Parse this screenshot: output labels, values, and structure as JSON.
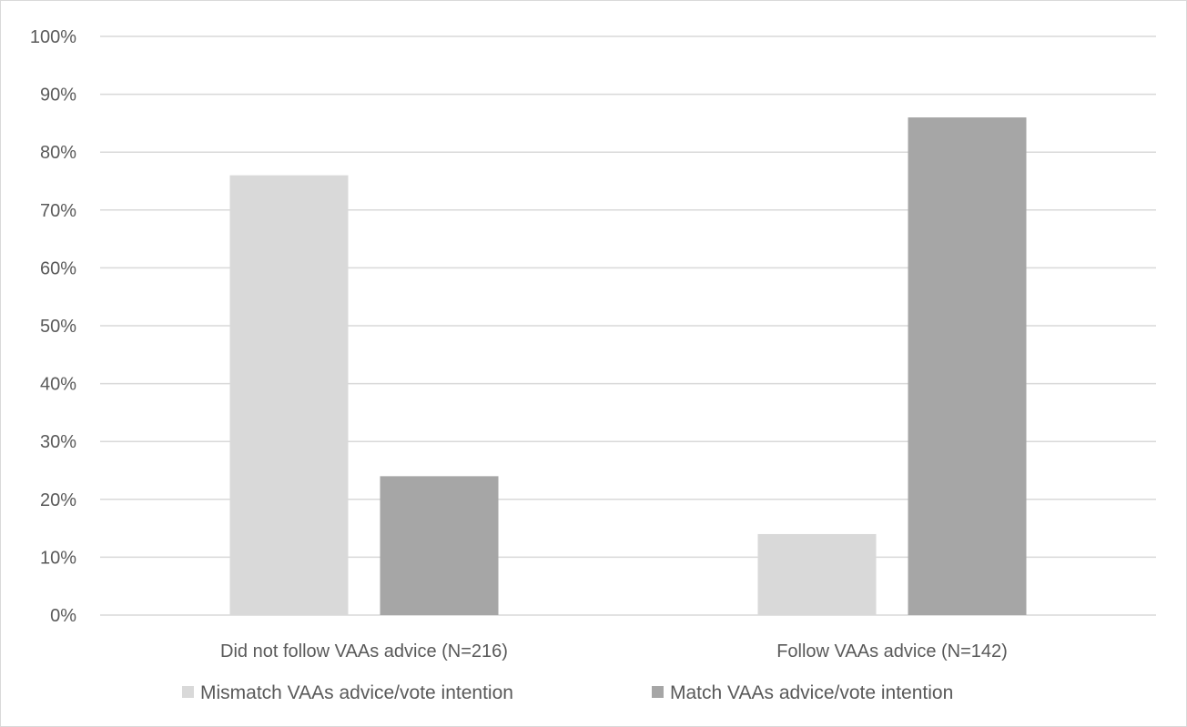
{
  "chart_data": {
    "type": "bar",
    "title": "",
    "xlabel": "",
    "ylabel": "",
    "categories": [
      "Did not follow VAAs advice (N=216)",
      "Follow VAAs advice (N=142)"
    ],
    "series": [
      {
        "name": "Mismatch VAAs advice/vote intention",
        "values": [
          76,
          14
        ],
        "color": "#d9d9d9"
      },
      {
        "name": "Match VAAs advice/vote intention",
        "values": [
          24,
          86
        ],
        "color": "#a6a6a6"
      }
    ],
    "ylim": [
      0,
      100
    ],
    "yticks": [
      0,
      10,
      20,
      30,
      40,
      50,
      60,
      70,
      80,
      90,
      100
    ],
    "ytick_suffix": "%",
    "grid": true,
    "legend_position": "bottom"
  }
}
